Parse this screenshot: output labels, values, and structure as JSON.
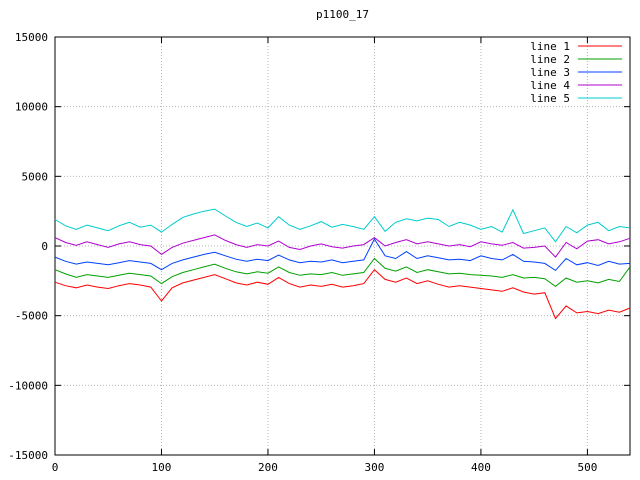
{
  "chart_data": {
    "type": "line",
    "title": "p1100_17",
    "xlabel": "",
    "ylabel": "",
    "xlim": [
      0,
      540
    ],
    "ylim": [
      -15000,
      15000
    ],
    "xticks": [
      0,
      100,
      200,
      300,
      400,
      500
    ],
    "yticks": [
      -15000,
      -10000,
      -5000,
      0,
      5000,
      10000,
      15000
    ],
    "grid": true,
    "legend_position": "top-right",
    "x": [
      0,
      10,
      20,
      30,
      40,
      50,
      60,
      70,
      80,
      90,
      100,
      110,
      120,
      130,
      140,
      150,
      160,
      170,
      180,
      190,
      200,
      210,
      220,
      230,
      240,
      250,
      260,
      270,
      280,
      290,
      300,
      310,
      320,
      330,
      340,
      350,
      360,
      370,
      380,
      390,
      400,
      410,
      420,
      430,
      440,
      450,
      460,
      470,
      480,
      490,
      500,
      510,
      520,
      530,
      540
    ],
    "series": [
      {
        "name": "line 1",
        "color": "#ff0000",
        "values": [
          -2600,
          -2850,
          -3000,
          -2800,
          -2950,
          -3050,
          -2850,
          -2700,
          -2800,
          -2950,
          -3950,
          -3000,
          -2650,
          -2450,
          -2250,
          -2050,
          -2350,
          -2650,
          -2800,
          -2600,
          -2750,
          -2250,
          -2700,
          -2950,
          -2800,
          -2900,
          -2750,
          -2950,
          -2850,
          -2700,
          -1700,
          -2400,
          -2600,
          -2300,
          -2700,
          -2500,
          -2750,
          -2950,
          -2850,
          -2950,
          -3050,
          -3150,
          -3250,
          -3000,
          -3300,
          -3450,
          -3350,
          -5200,
          -4300,
          -4800,
          -4700,
          -4850,
          -4600,
          -4750,
          -4450
        ]
      },
      {
        "name": "line 2",
        "color": "#00a000",
        "values": [
          -1700,
          -2000,
          -2250,
          -2050,
          -2150,
          -2250,
          -2100,
          -1950,
          -2050,
          -2150,
          -2700,
          -2200,
          -1900,
          -1700,
          -1500,
          -1300,
          -1600,
          -1850,
          -2000,
          -1850,
          -1950,
          -1500,
          -1900,
          -2100,
          -2000,
          -2050,
          -1900,
          -2100,
          -2000,
          -1900,
          -900,
          -1600,
          -1800,
          -1500,
          -1900,
          -1700,
          -1850,
          -2000,
          -1950,
          -2050,
          -2100,
          -2150,
          -2250,
          -2050,
          -2300,
          -2250,
          -2350,
          -2900,
          -2300,
          -2600,
          -2500,
          -2650,
          -2400,
          -2550,
          -1500
        ]
      },
      {
        "name": "line 3",
        "color": "#0040ff",
        "values": [
          -800,
          -1100,
          -1300,
          -1150,
          -1250,
          -1350,
          -1200,
          -1050,
          -1150,
          -1250,
          -1700,
          -1250,
          -1000,
          -800,
          -600,
          -450,
          -700,
          -950,
          -1100,
          -950,
          -1050,
          -650,
          -1000,
          -1200,
          -1100,
          -1150,
          -1000,
          -1200,
          -1100,
          -1000,
          500,
          -700,
          -900,
          -400,
          -900,
          -700,
          -850,
          -1000,
          -950,
          -1050,
          -700,
          -900,
          -1000,
          -600,
          -1100,
          -1150,
          -1250,
          -1750,
          -900,
          -1350,
          -1200,
          -1400,
          -1100,
          -1300,
          -1250
        ]
      },
      {
        "name": "line 4",
        "color": "#b000d0",
        "values": [
          600,
          250,
          50,
          300,
          100,
          -100,
          150,
          300,
          100,
          0,
          -600,
          -100,
          200,
          400,
          600,
          800,
          400,
          100,
          -100,
          100,
          0,
          350,
          -100,
          -250,
          0,
          150,
          -50,
          -150,
          0,
          100,
          600,
          0,
          250,
          450,
          150,
          300,
          150,
          0,
          100,
          -50,
          300,
          150,
          50,
          250,
          -150,
          -100,
          0,
          -800,
          250,
          -200,
          350,
          450,
          150,
          300,
          550
        ]
      },
      {
        "name": "line 5",
        "color": "#00cccc",
        "values": [
          1900,
          1450,
          1200,
          1500,
          1300,
          1100,
          1450,
          1700,
          1350,
          1500,
          1000,
          1550,
          2050,
          2300,
          2500,
          2650,
          2150,
          1700,
          1400,
          1650,
          1300,
          2100,
          1500,
          1200,
          1450,
          1750,
          1350,
          1550,
          1400,
          1200,
          2100,
          1050,
          1700,
          1950,
          1800,
          2000,
          1900,
          1400,
          1700,
          1500,
          1200,
          1400,
          1000,
          2600,
          900,
          1100,
          1300,
          300,
          1400,
          950,
          1500,
          1700,
          1100,
          1400,
          1300
        ]
      }
    ]
  }
}
